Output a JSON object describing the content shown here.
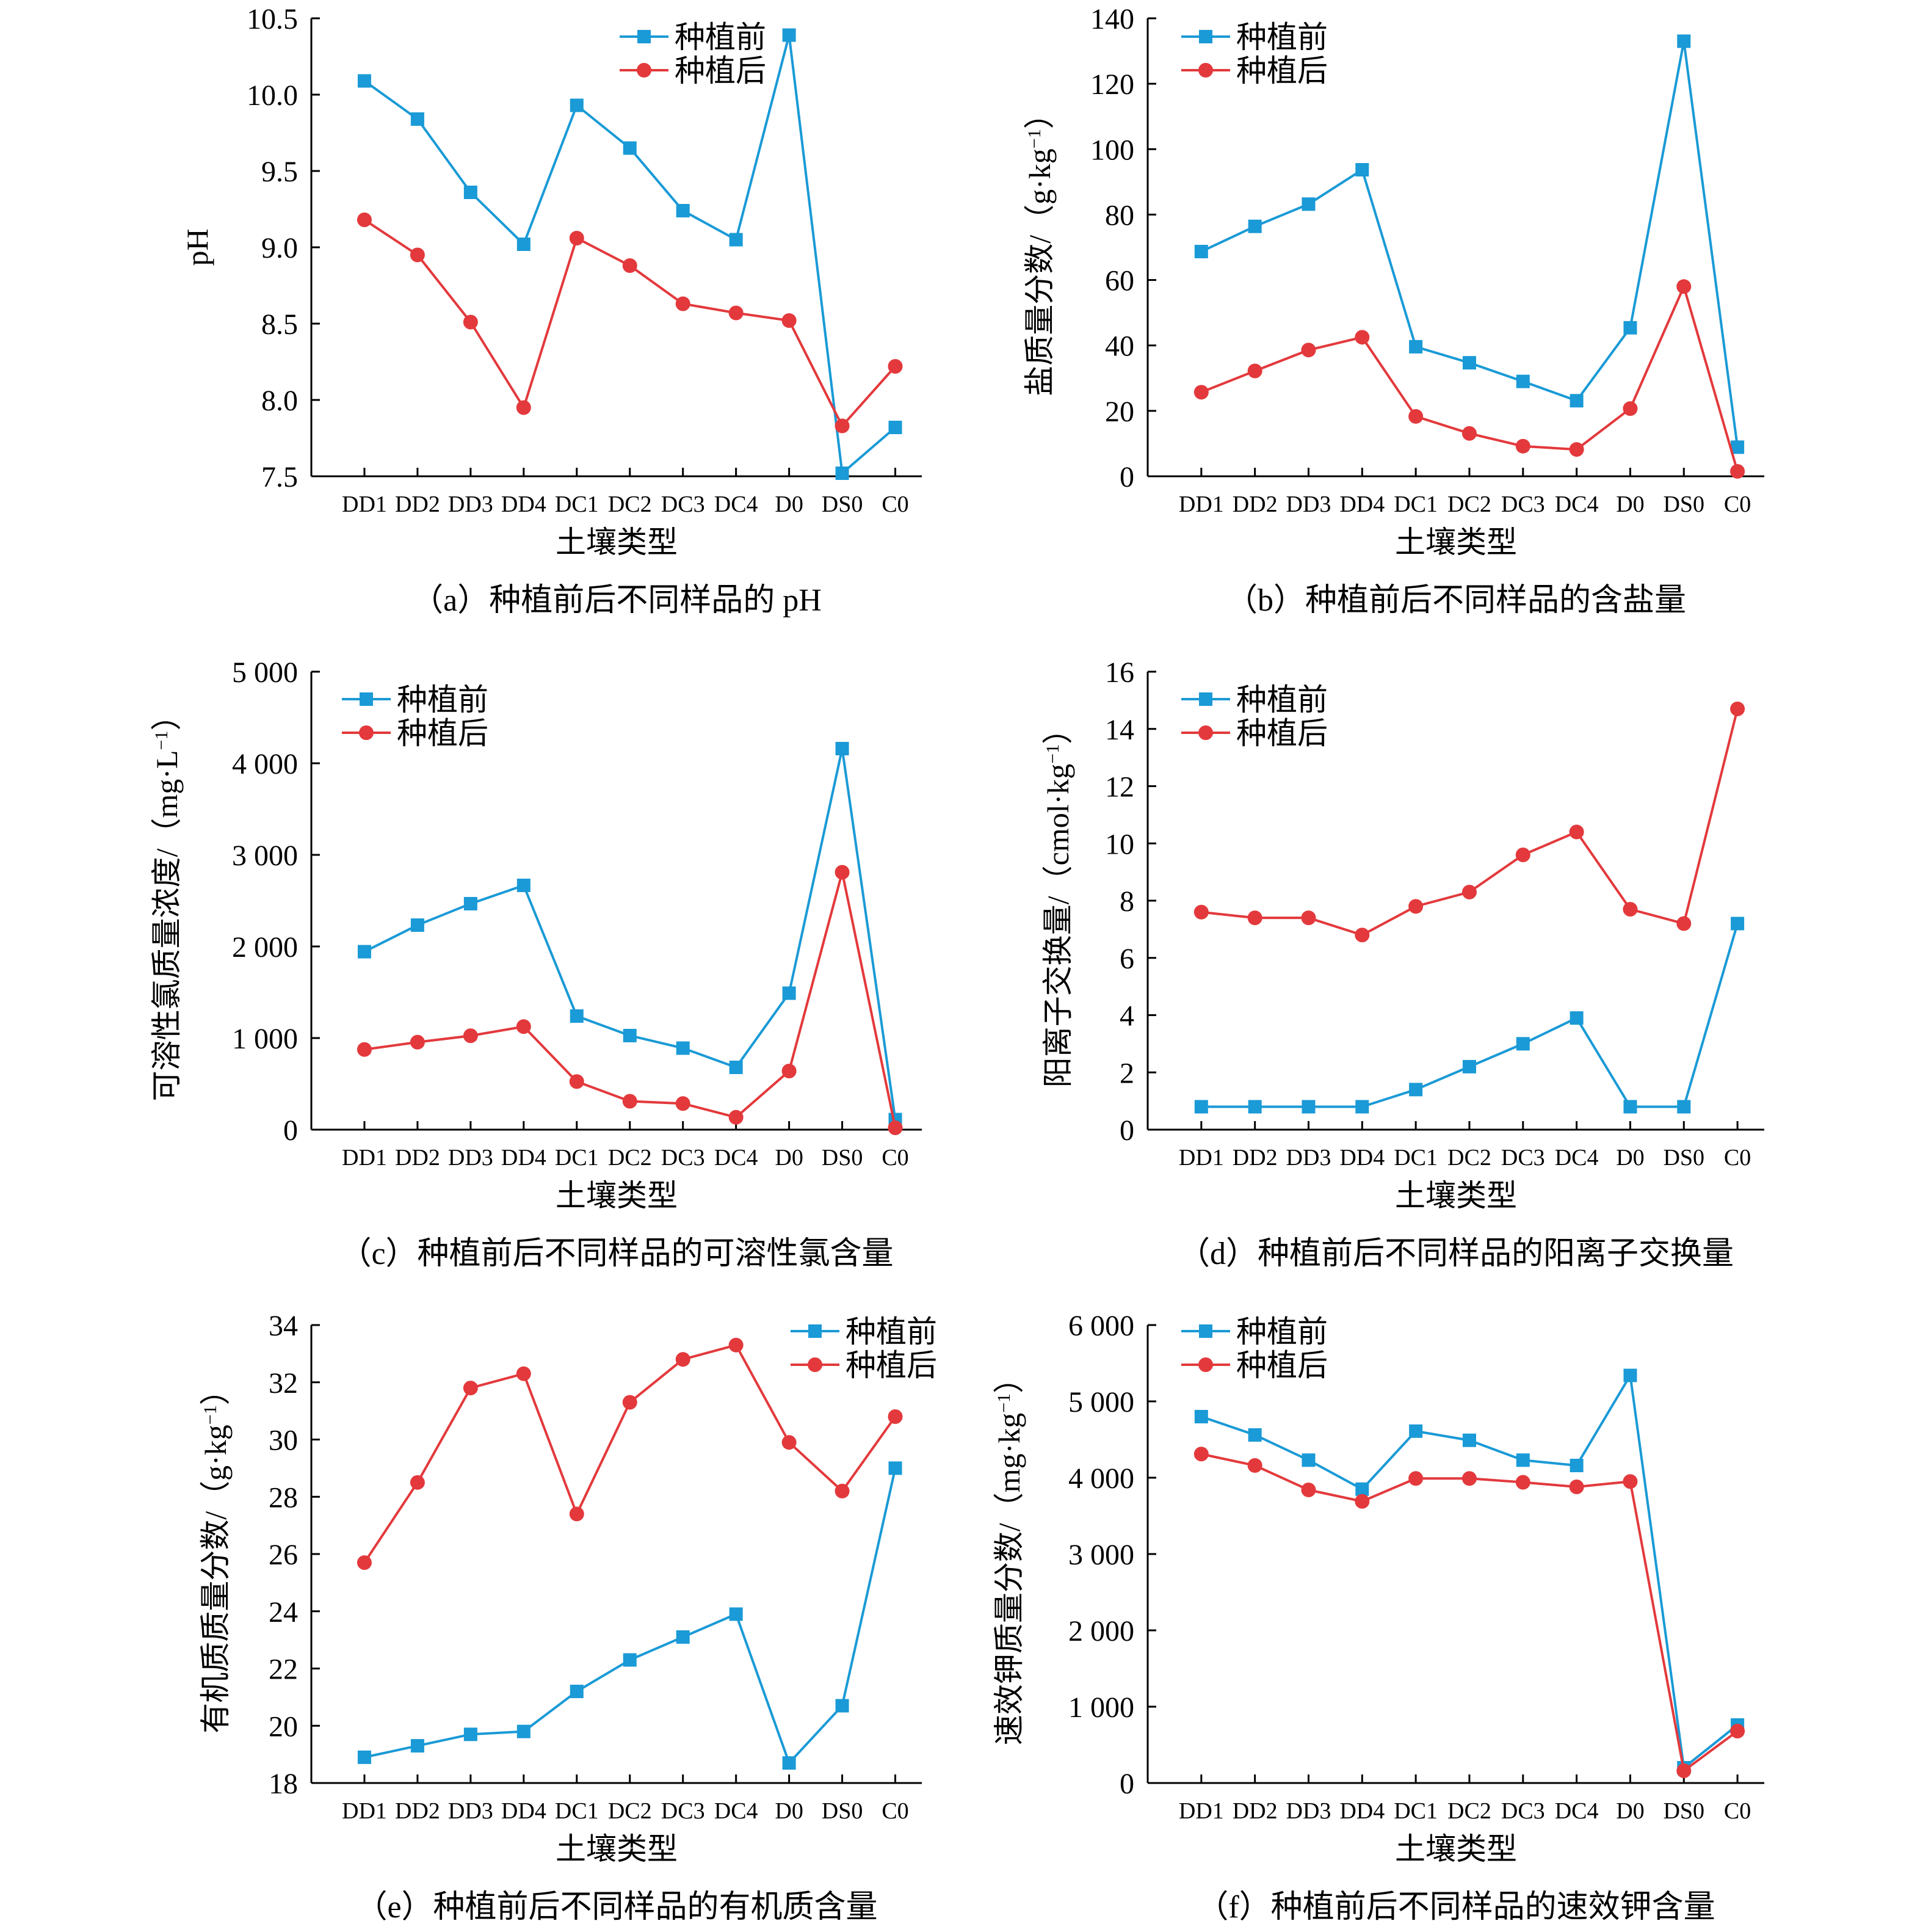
{
  "colors": {
    "before": "#1a9ad6",
    "after": "#e3393c",
    "axis": "#000000"
  },
  "chart_data": [
    {
      "type": "line",
      "caption": "（a）种植前后不同样品的 pH",
      "xlabel": "土壤类型",
      "ylabel": "pH",
      "ylabel_unit": "",
      "categories": [
        "DD1",
        "DD2",
        "DD3",
        "DD4",
        "DC1",
        "DC2",
        "DC3",
        "DC4",
        "D0",
        "DS0",
        "C0"
      ],
      "ylim": [
        7.5,
        10.5
      ],
      "yticks": [
        7.5,
        8.0,
        8.5,
        9.0,
        9.5,
        10.0,
        10.5
      ],
      "ytick_labels": [
        "7.5",
        "8.0",
        "8.5",
        "9.0",
        "9.5",
        "10.0",
        "10.5"
      ],
      "legend": "top-center",
      "series": [
        {
          "name": "种植前",
          "marker": "square",
          "values": [
            10.09,
            9.84,
            9.36,
            9.02,
            9.93,
            9.65,
            9.24,
            9.05,
            10.39,
            7.52,
            7.82
          ]
        },
        {
          "name": "种植后",
          "marker": "circle",
          "values": [
            9.18,
            8.95,
            8.51,
            7.95,
            9.06,
            8.88,
            8.63,
            8.57,
            8.52,
            7.83,
            8.22
          ]
        }
      ]
    },
    {
      "type": "line",
      "caption": "（b）种植前后不同样品的含盐量",
      "xlabel": "土壤类型",
      "ylabel": "盐质量分数/（g·kg",
      "ylabel_unit": "g·kg⁻¹",
      "categories": [
        "DD1",
        "DD2",
        "DD3",
        "DD4",
        "DC1",
        "DC2",
        "DC3",
        "DC4",
        "D0",
        "DS0",
        "C0"
      ],
      "ylim": [
        0,
        140
      ],
      "yticks": [
        0,
        20,
        40,
        60,
        80,
        100,
        120,
        140
      ],
      "ytick_labels": [
        "0",
        "20",
        "40",
        "60",
        "80",
        "100",
        "120",
        "140"
      ],
      "legend": "top-left",
      "series": [
        {
          "name": "种植前",
          "marker": "square",
          "values": [
            68.7,
            76.4,
            83.2,
            93.7,
            39.6,
            34.7,
            29.0,
            23.1,
            45.4,
            133.0,
            8.9
          ]
        },
        {
          "name": "种植后",
          "marker": "circle",
          "values": [
            25.7,
            32.2,
            38.6,
            42.5,
            18.3,
            13.1,
            9.2,
            8.2,
            20.7,
            58.0,
            1.5
          ]
        }
      ]
    },
    {
      "type": "line",
      "caption": "（c）种植前后不同样品的可溶性氯含量",
      "xlabel": "土壤类型",
      "ylabel": "可溶性氯质量浓度/（mg·L",
      "ylabel_unit": "mg·L⁻¹",
      "categories": [
        "DD1",
        "DD2",
        "DD3",
        "DD4",
        "DC1",
        "DC2",
        "DC3",
        "DC4",
        "D0",
        "DS0",
        "C0"
      ],
      "ylim": [
        0,
        5000
      ],
      "yticks": [
        0,
        1000,
        2000,
        3000,
        4000,
        5000
      ],
      "ytick_labels": [
        "0",
        "1 000",
        "2 000",
        "3 000",
        "4 000",
        "5 000"
      ],
      "legend": "top-left",
      "series": [
        {
          "name": "种植前",
          "marker": "square",
          "values": [
            1943,
            2233,
            2467,
            2667,
            1240,
            1027,
            890,
            680,
            1490,
            4160,
            110
          ]
        },
        {
          "name": "种植后",
          "marker": "circle",
          "values": [
            875,
            955,
            1025,
            1125,
            525,
            310,
            285,
            135,
            640,
            2810,
            20
          ]
        }
      ]
    },
    {
      "type": "line",
      "caption": "（d）种植前后不同样品的阳离子交换量",
      "xlabel": "土壤类型",
      "ylabel": "阳离子交换量/（cmol·kg",
      "ylabel_unit": "cmol·kg⁻¹",
      "categories": [
        "DD1",
        "DD2",
        "DD3",
        "DD4",
        "DC1",
        "DC2",
        "DC3",
        "DC4",
        "D0",
        "DS0",
        "C0"
      ],
      "ylim": [
        0,
        16
      ],
      "yticks": [
        0,
        2,
        4,
        6,
        8,
        10,
        12,
        14,
        16
      ],
      "ytick_labels": [
        "0",
        "2",
        "4",
        "6",
        "8",
        "10",
        "12",
        "14",
        "16"
      ],
      "legend": "top-left",
      "series": [
        {
          "name": "种植前",
          "marker": "square",
          "values": [
            0.8,
            0.8,
            0.8,
            0.8,
            1.4,
            2.2,
            3.0,
            3.9,
            0.8,
            0.8,
            7.2
          ]
        },
        {
          "name": "种植后",
          "marker": "circle",
          "values": [
            7.6,
            7.4,
            7.4,
            6.8,
            7.8,
            8.3,
            9.6,
            10.4,
            7.7,
            7.2,
            14.7
          ]
        }
      ]
    },
    {
      "type": "line",
      "caption": "（e）种植前后不同样品的有机质含量",
      "xlabel": "土壤类型",
      "ylabel": "有机质质量分数/（g·kg",
      "ylabel_unit": "g·kg⁻¹",
      "categories": [
        "DD1",
        "DD2",
        "DD3",
        "DD4",
        "DC1",
        "DC2",
        "DC3",
        "DC4",
        "D0",
        "DS0",
        "C0"
      ],
      "ylim": [
        18,
        34
      ],
      "yticks": [
        18,
        20,
        22,
        24,
        26,
        28,
        30,
        32,
        34
      ],
      "ytick_labels": [
        "18",
        "20",
        "22",
        "24",
        "26",
        "28",
        "30",
        "32",
        "34"
      ],
      "legend": "top-right",
      "series": [
        {
          "name": "种植前",
          "marker": "square",
          "values": [
            18.9,
            19.3,
            19.7,
            19.8,
            21.2,
            22.3,
            23.1,
            23.9,
            18.7,
            20.7,
            29.0
          ]
        },
        {
          "name": "种植后",
          "marker": "circle",
          "values": [
            25.7,
            28.5,
            31.8,
            32.3,
            27.4,
            31.3,
            32.8,
            33.3,
            29.9,
            28.2,
            30.8
          ]
        }
      ]
    },
    {
      "type": "line",
      "caption": "（f）种植前后不同样品的速效钾含量",
      "xlabel": "土壤类型",
      "ylabel": "速效钾质量分数/（mg·kg",
      "ylabel_unit": "mg·kg⁻¹",
      "categories": [
        "DD1",
        "DD2",
        "DD3",
        "DD4",
        "DC1",
        "DC2",
        "DC3",
        "DC4",
        "D0",
        "DS0",
        "C0"
      ],
      "ylim": [
        0,
        6000
      ],
      "yticks": [
        0,
        1000,
        2000,
        3000,
        4000,
        5000,
        6000
      ],
      "ytick_labels": [
        "0",
        "1 000",
        "2 000",
        "3 000",
        "4 000",
        "5 000",
        "6 000"
      ],
      "legend": "top-left",
      "series": [
        {
          "name": "种植前",
          "marker": "square",
          "values": [
            4800,
            4560,
            4230,
            3850,
            4610,
            4490,
            4230,
            4160,
            5340,
            200,
            760
          ]
        },
        {
          "name": "种植后",
          "marker": "circle",
          "values": [
            4310,
            4160,
            3840,
            3690,
            3990,
            3990,
            3940,
            3880,
            3950,
            160,
            680
          ]
        }
      ]
    }
  ]
}
